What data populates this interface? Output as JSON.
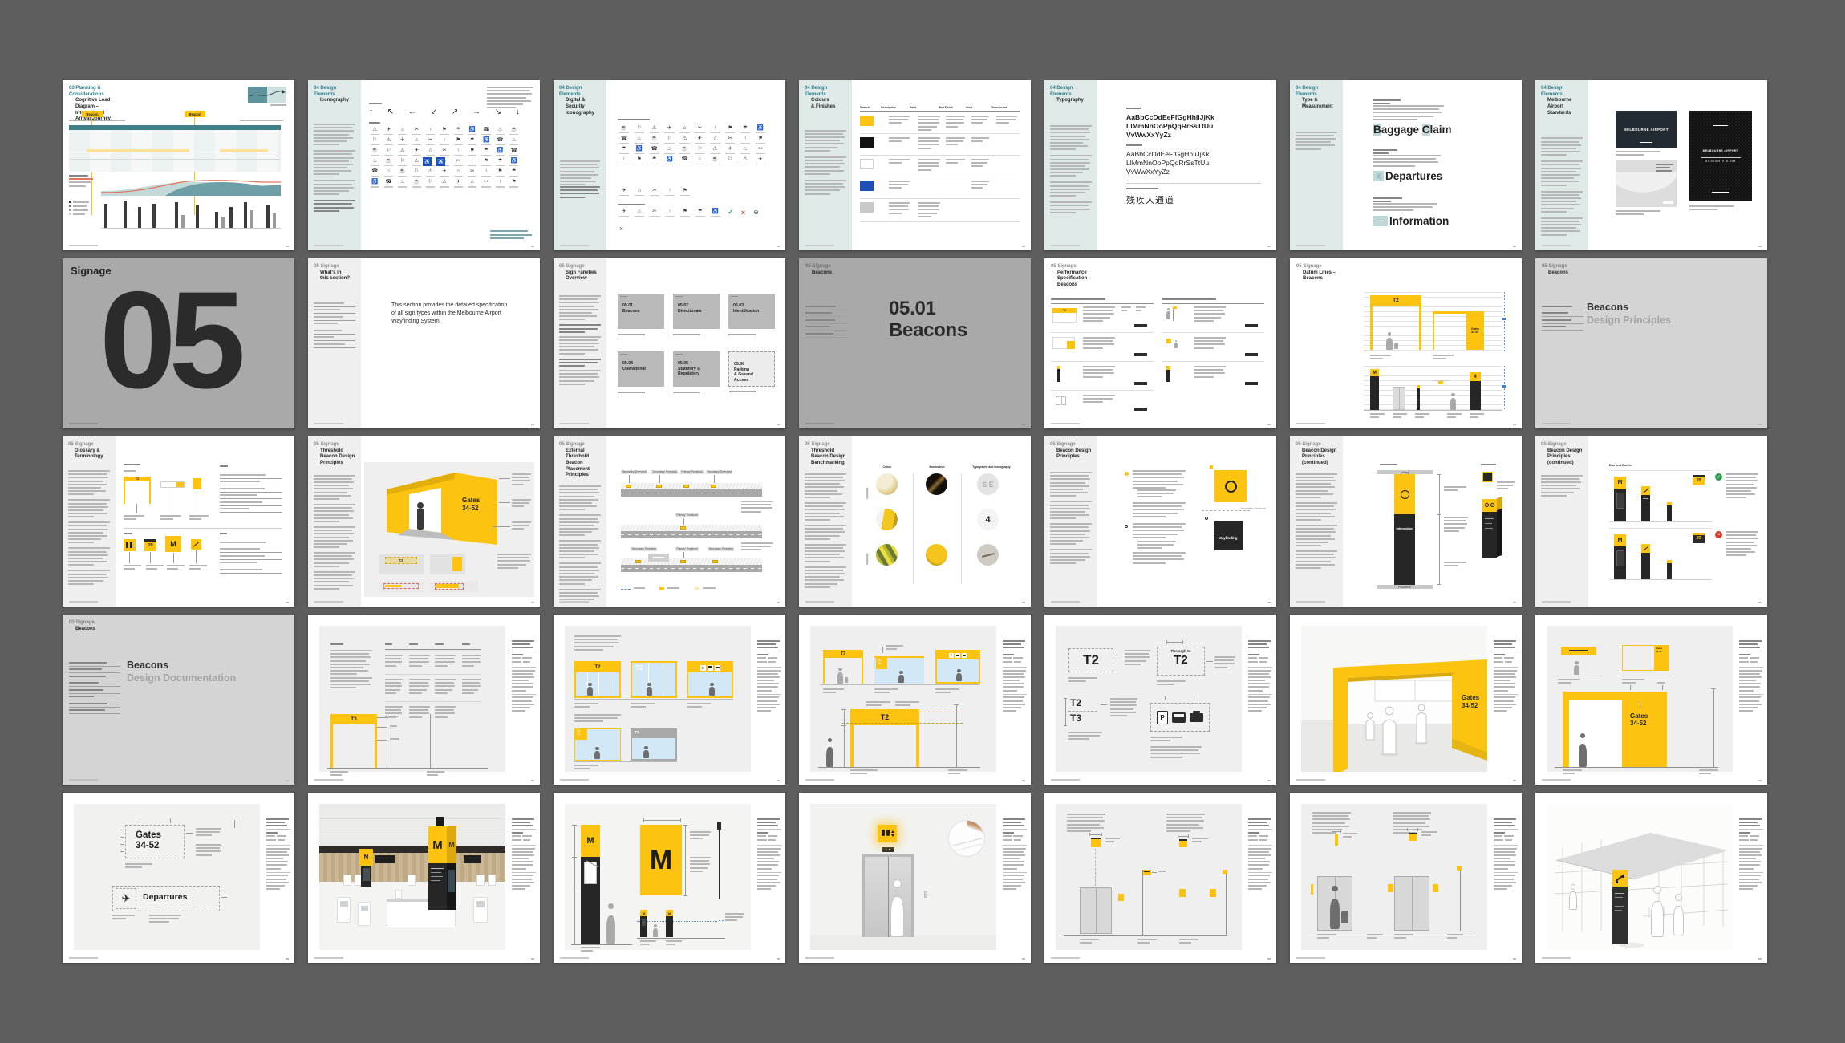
{
  "colors": {
    "board_background": "#5E5E5E",
    "accent_yellow": "#FCC410",
    "teal_heading": "#2E7D8C",
    "teal_sidebar": "#DFE9E8",
    "gray_sidebar": "#EFEFEF",
    "accessible_blue": "#1D4FB8",
    "gray_cover_page": "#A9A9A9",
    "light_gray_page": "#D4D4D4",
    "drawing_panel": "#EFEFEF",
    "glass_blue": "#D2E8F7",
    "ink": "#1F1F1F",
    "do_green": "#2F9E4F",
    "dont_red": "#D4392B",
    "cover_navy": "#222B32"
  },
  "decor": {
    "icon_glyphs": [
      "☂",
      "✈",
      "☎",
      "✂",
      "☕",
      "⚑",
      "⚠",
      "♿",
      "⌂",
      "♨",
      "↑",
      "⚐"
    ]
  },
  "pages": {
    "p01": {
      "h1": "03 Planning &\nConsiderations",
      "h2": "Cognitive Load\nDiagram –\nInternational\nArrival Journey",
      "beacon_tag": "Beacon"
    },
    "p02": {
      "h1": "04 Design Elements",
      "h2": "Iconography",
      "arrows": [
        "↑",
        "↖",
        "←",
        "↙",
        "↗",
        "→",
        "↘",
        "↓"
      ],
      "access": "♿"
    },
    "p03": {
      "h1": "04 Design Elements",
      "h2": "Digital & Security\nIconography",
      "check": "✓",
      "cross": "×",
      "globe": "⊕"
    },
    "p04": {
      "h1": "04 Design Elements",
      "h2": "Colours\n& Finishes",
      "cols": [
        "Swatch",
        "Description",
        "Paint",
        "Wall Finish",
        "Vinyl",
        "Translucent"
      ]
    },
    "p05": {
      "h1": "04 Design Elements",
      "h2": "Typography",
      "specimen": "AaBbCcDdEeFfGgHhIiJjKk\nLlMmNnOoPpQqRrSsTtUu\nVvWwXxYyZz",
      "chinese": "残疾人通道"
    },
    "p06": {
      "h1": "04 Design Elements",
      "h2": "Type &\nMeasurement",
      "s1a": "B",
      "s1b": "aggage ",
      "s1c": "C",
      "s1d": "laim",
      "xbox": "X",
      "s2": "Departures",
      "s3": "Information"
    },
    "p07": {
      "h1": "04 Design Elements",
      "h2": "Melbourne Airport\nStandards",
      "cover1": "MELBOURNE AIRPORT",
      "cover3a": "MELBOURNE AIRPORT",
      "cover3b": "DESIGN VISION"
    },
    "p08": {
      "title": "Signage",
      "number": "05"
    },
    "p09": {
      "h1": "05 Signage",
      "h2": "What's in\nthis section?",
      "body": "This section provides the detailed specification of all sign types within the Melbourne Airport Wayfinding System."
    },
    "p10": {
      "h1": "05 Signage",
      "h2": "Sign Families\nOverview",
      "tiles": [
        "05.01\nBeacons",
        "05.02\nDirectionals",
        "05.03\nIdentification",
        "05.04\nOperational",
        "05.05\nStatutory &\nRegulatory",
        "05.06\nParking\n& Ground\nAccess"
      ]
    },
    "p11": {
      "h1": "05 Signage",
      "h2": "Beacons",
      "big": "05.01\nBeacons"
    },
    "p12": {
      "h1": "05 Signage",
      "h2": "Performance\nSpecification –\nBeacons",
      "t2": "T2"
    },
    "p13": {
      "h1": "05 Signage",
      "h2": "Datum Lines –\nBeacons",
      "t2": "T2",
      "gates": "Gates\n34-52",
      "m": "M",
      "four": "4"
    },
    "p14": {
      "h1": "05 Signage",
      "h2": "Beacons",
      "big1": "Beacons",
      "big2": "Design Principles"
    },
    "p15": {
      "h1": "05 Signage",
      "h2": "Glossary &\nTerminology",
      "t3": "T3",
      "twenty": "20",
      "m": "M"
    },
    "p16": {
      "h1": "05 Signage",
      "h2": "Threshold\nBeacon Design\nPrinciples",
      "gates": "Gates\n34-52",
      "t2": "T2"
    },
    "p17": {
      "h1": "05 Signage",
      "h2": "External Threshold\nBeacon Placement\nPrinciples",
      "secondary": "Secondary Threshold",
      "primary": "Primary Threshold"
    },
    "p18": {
      "h1": "05 Signage",
      "h2": "Threshold\nBeacon Design\nBenchmarking",
      "cols": [
        "Colour",
        "Illumination",
        "Typography and Iconography"
      ],
      "four": "4",
      "se": "S E"
    },
    "p19": {
      "h1": "05 Signage",
      "h2": "Beacon Design\nPrinciples",
      "wayfinding": "Wayfinding\nInformation",
      "threshold": "Information threshold"
    },
    "p20": {
      "h1": "05 Signage",
      "h2": "Beacon Design\nPrinciples\n(continued)",
      "ceiling": "Ceiling",
      "floor": "Floor level",
      "info": "Information"
    },
    "p21": {
      "h1": "05 Signage",
      "h2": "Beacon Design\nPrinciples\n(continued)",
      "dodonts": "Dos and Don'ts",
      "m": "M",
      "twenty": "20",
      "check": "✓",
      "cross": "×"
    },
    "p22": {
      "h1": "05 Signage",
      "h2": "Beacons",
      "big1": "Beacons",
      "big2": "Design Documentation"
    },
    "p23": {
      "t3": "T3"
    },
    "p24": {
      "t2": "T2",
      "t2t3": "T2\nT3",
      "t3": "T3",
      "p": "P"
    },
    "p25": {
      "t3": "T3",
      "t2t3": "T2\nT3",
      "t2": "T2",
      "p": "P"
    },
    "p26": {
      "t2": "T2",
      "through": "Through to",
      "t2b": "T2",
      "t2s": "T2",
      "t3s": "T3",
      "p": "P"
    },
    "p27": {
      "gates": "Gates\n34-52"
    },
    "p28": {
      "gates": "G ates\n34-52",
      "gates_small": "Gates\n34-52",
      "gates_big": "Gates\n34-52"
    },
    "p29": {
      "gates": "Gates\n34-52",
      "departures": "Departures",
      "plane": "✈"
    },
    "p30": {
      "n": "N",
      "m": "M"
    },
    "p31": {
      "m": "M"
    }
  }
}
